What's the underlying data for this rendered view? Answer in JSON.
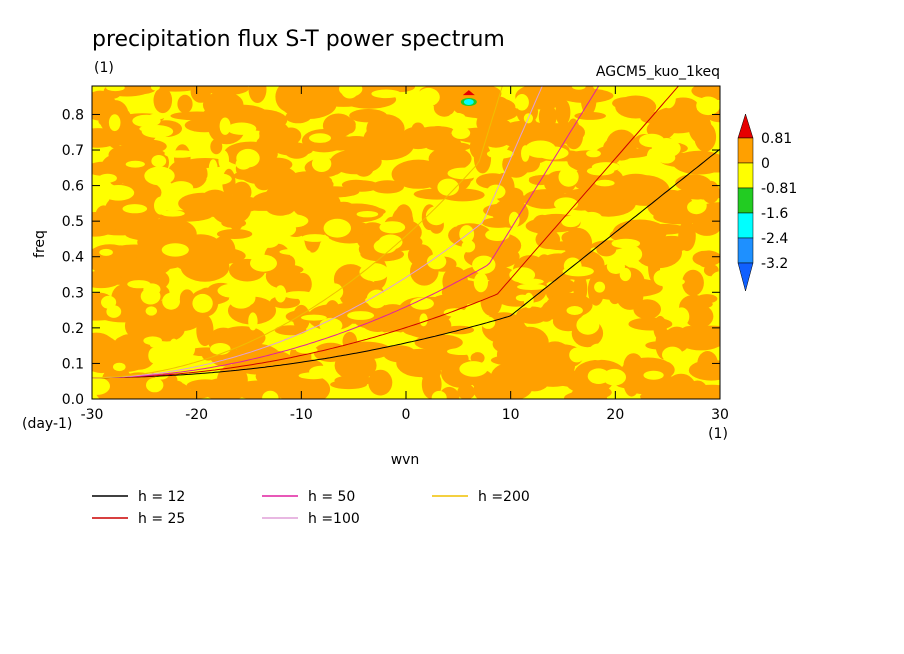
{
  "chart_data": {
    "type": "heatmap",
    "title": "precipitation flux S-T power spectrum",
    "subtitle_left": "(1)",
    "subtitle_right": "AGCM5_kuo_1keq",
    "xlabel": "wvn",
    "ylabel": "freq",
    "x_unit": "(1)",
    "y_unit": "(day-1)",
    "xlim": [
      -30,
      30
    ],
    "ylim": [
      0,
      0.88
    ],
    "x_ticks": [
      -30,
      -20,
      -10,
      0,
      10,
      20,
      30
    ],
    "x_tick_labels": [
      "-30",
      "-20",
      "-10",
      "0",
      "10",
      "20",
      "30"
    ],
    "y_ticks": [
      0,
      0.1,
      0.2,
      0.3,
      0.4,
      0.5,
      0.6,
      0.7,
      0.8
    ],
    "y_tick_labels": [
      "0.0",
      "0.1",
      "0.2",
      "0.3",
      "0.4",
      "0.5",
      "0.6",
      "0.7",
      "0.8"
    ],
    "colorbar": {
      "labels": [
        "0.81",
        "0",
        "-0.81",
        "-1.6",
        "-2.4",
        "-3.2"
      ],
      "colors": [
        "#e60000",
        "#ffa000",
        "#ffff00",
        "#22cc22",
        "#00ffff",
        "#1e90ff",
        "#1060ff"
      ]
    },
    "field_description_levels": {
      "dominant_band_low": -0.81,
      "dominant_band_high": 0.81
    },
    "anomaly": {
      "x": 6,
      "y": 0.835,
      "peak_y": 0.86
    },
    "series": [
      {
        "name": "h = 12",
        "color": "#000000",
        "h": 12
      },
      {
        "name": "h = 25",
        "color": "#cc0000",
        "h": 25
      },
      {
        "name": "h = 50",
        "color": "#e020a0",
        "h": 50
      },
      {
        "name": "h =100",
        "color": "#e0a0d8",
        "h": 100
      },
      {
        "name": "h =200",
        "color": "#f0c000",
        "h": 200
      }
    ],
    "legend_placement": "bottom-left"
  }
}
